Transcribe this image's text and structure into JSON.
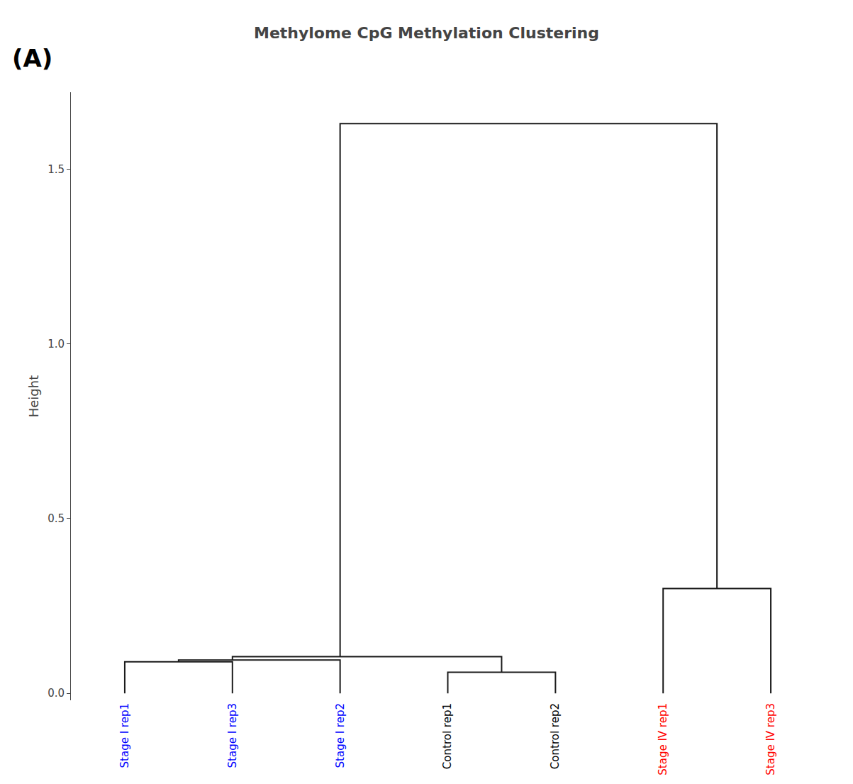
{
  "chart_data": {
    "type": "dendrogram",
    "title": "Methylome CpG Methylation Clustering",
    "annotations": [
      "(A)"
    ],
    "ylabel": "Height",
    "categories": [
      "Stage I rep1",
      "Stage I rep3",
      "Stage I rep2",
      "Control rep1",
      "Control rep2",
      "Stage IV rep1",
      "Stage IV rep3"
    ],
    "category_colors": [
      "blue",
      "blue",
      "blue",
      "black",
      "black",
      "red",
      "red"
    ],
    "merges": [
      {
        "left": 0,
        "right": 1,
        "height": 0.09
      },
      {
        "left": 7,
        "right": 2,
        "height": 0.095
      },
      {
        "left": 3,
        "right": 4,
        "height": 0.06
      },
      {
        "left": 8,
        "right": 9,
        "height": 0.105
      },
      {
        "left": 5,
        "right": 6,
        "height": 0.3
      },
      {
        "left": 10,
        "right": 11,
        "height": 1.63
      }
    ],
    "color": "#1a1a1a",
    "ylim": [
      -0.02,
      1.72
    ],
    "yticks": [
      {
        "value": 0.0,
        "label": "0.0"
      },
      0.5,
      {
        "value": 1.0,
        "label": "1.0"
      },
      1.5
    ],
    "grid": false
  }
}
